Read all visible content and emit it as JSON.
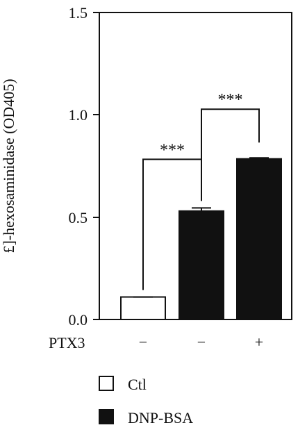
{
  "chart_data": {
    "type": "bar",
    "ylabel": "£]-hexosaminidase (OD405)",
    "ylim": [
      0,
      1.5
    ],
    "yticks": [
      "0.0",
      "0.5",
      "1.0",
      "1.5"
    ],
    "condition_label": "PTX3",
    "conditions": [
      "−",
      "−",
      "+"
    ],
    "bars": [
      {
        "series": "Ctl",
        "value": 0.11,
        "error": 0.0
      },
      {
        "series": "DNP-BSA",
        "value": 0.53,
        "error": 0.015
      },
      {
        "series": "DNP-BSA",
        "value": 0.785,
        "error": 0.005
      }
    ],
    "legend": [
      {
        "name": "Ctl",
        "fill": "#ffffff"
      },
      {
        "name": "DNP-BSA",
        "fill": "#111111"
      }
    ],
    "significance": [
      {
        "from": 0,
        "to": 1,
        "label": "***"
      },
      {
        "from": 1,
        "to": 2,
        "label": "***"
      }
    ]
  }
}
